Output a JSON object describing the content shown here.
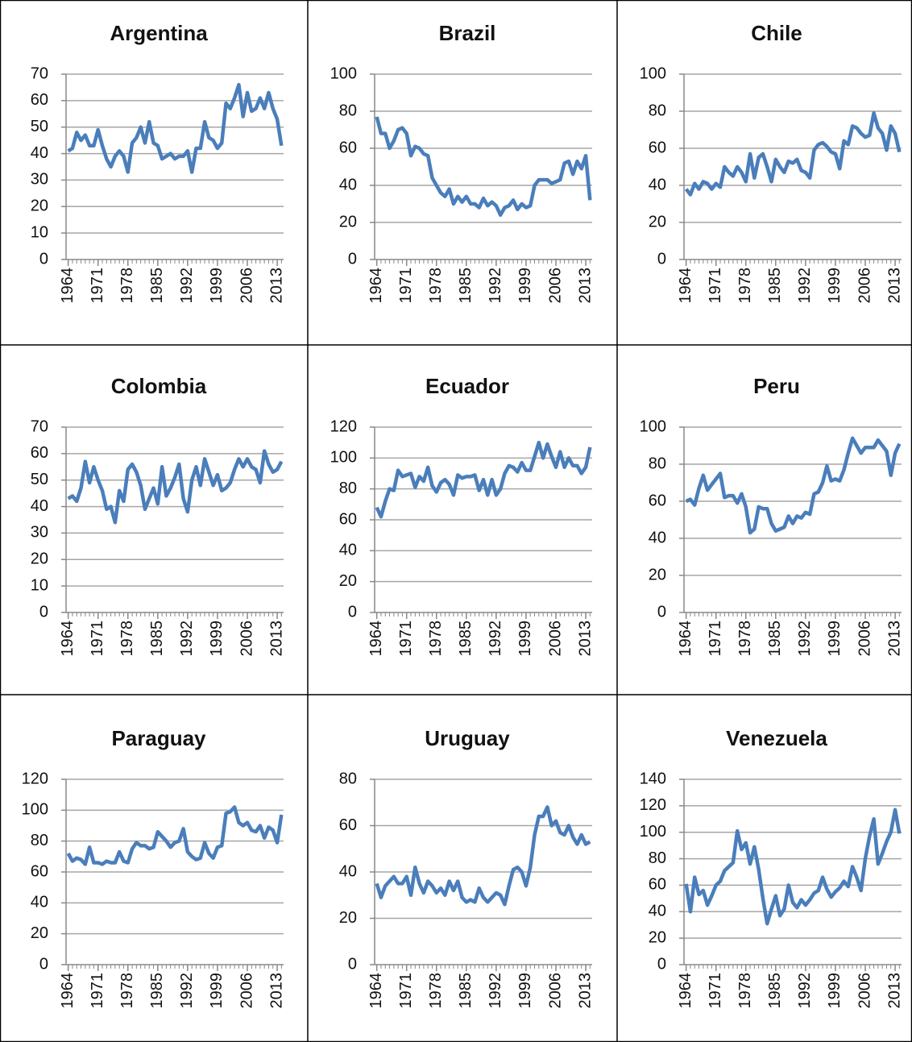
{
  "chart_data": [
    {
      "type": "line",
      "title": "Argentina",
      "color": "#4a7ebb",
      "x": [
        1964,
        1965,
        1966,
        1967,
        1968,
        1969,
        1970,
        1971,
        1972,
        1973,
        1974,
        1975,
        1976,
        1977,
        1978,
        1979,
        1980,
        1981,
        1982,
        1983,
        1984,
        1985,
        1986,
        1987,
        1988,
        1989,
        1990,
        1991,
        1992,
        1993,
        1994,
        1995,
        1996,
        1997,
        1998,
        1999,
        2000,
        2001,
        2002,
        2003,
        2004,
        2005,
        2006,
        2007,
        2008,
        2009,
        2010,
        2011,
        2012,
        2013,
        2014
      ],
      "values": [
        41,
        42,
        48,
        45,
        47,
        43,
        43,
        49,
        43,
        38,
        35,
        39,
        41,
        39,
        33,
        44,
        46,
        50,
        44,
        52,
        44,
        43,
        38,
        39,
        40,
        38,
        39,
        39,
        41,
        33,
        42,
        42,
        52,
        46,
        45,
        42,
        44,
        59,
        57,
        61,
        66,
        54,
        63,
        56,
        57,
        61,
        57,
        63,
        57,
        53,
        43
      ],
      "xlim": [
        1963.5,
        2014.5
      ],
      "xticks": [
        1964,
        1971,
        1978,
        1985,
        1992,
        1999,
        2006,
        2013
      ],
      "ylim": [
        0,
        70
      ],
      "yticks": [
        0,
        10,
        20,
        30,
        40,
        50,
        60,
        70
      ],
      "grid": true
    },
    {
      "type": "line",
      "title": "Brazil",
      "color": "#4a7ebb",
      "x": [
        1964,
        1965,
        1966,
        1967,
        1968,
        1969,
        1970,
        1971,
        1972,
        1973,
        1974,
        1975,
        1976,
        1977,
        1978,
        1979,
        1980,
        1981,
        1982,
        1983,
        1984,
        1985,
        1986,
        1987,
        1988,
        1989,
        1990,
        1991,
        1992,
        1993,
        1994,
        1995,
        1996,
        1997,
        1998,
        1999,
        2000,
        2001,
        2002,
        2003,
        2004,
        2005,
        2006,
        2007,
        2008,
        2009,
        2010,
        2011,
        2012,
        2013,
        2014
      ],
      "values": [
        77,
        68,
        68,
        60,
        64,
        70,
        71,
        68,
        56,
        61,
        60,
        57,
        56,
        44,
        40,
        36,
        34,
        38,
        30,
        34,
        31,
        34,
        30,
        30,
        28,
        33,
        29,
        31,
        29,
        24,
        28,
        29,
        32,
        27,
        30,
        28,
        29,
        40,
        43,
        43,
        43,
        41,
        42,
        43,
        52,
        53,
        46,
        53,
        49,
        56,
        32
      ],
      "xlim": [
        1963.5,
        2014.5
      ],
      "xticks": [
        1964,
        1971,
        1978,
        1985,
        1992,
        1999,
        2006,
        2013
      ],
      "ylim": [
        0,
        100
      ],
      "yticks": [
        0,
        20,
        40,
        60,
        80,
        100
      ],
      "grid": true
    },
    {
      "type": "line",
      "title": "Chile",
      "color": "#4a7ebb",
      "x": [
        1964,
        1965,
        1966,
        1967,
        1968,
        1969,
        1970,
        1971,
        1972,
        1973,
        1974,
        1975,
        1976,
        1977,
        1978,
        1979,
        1980,
        1981,
        1982,
        1983,
        1984,
        1985,
        1986,
        1987,
        1988,
        1989,
        1990,
        1991,
        1992,
        1993,
        1994,
        1995,
        1996,
        1997,
        1998,
        1999,
        2000,
        2001,
        2002,
        2003,
        2004,
        2005,
        2006,
        2007,
        2008,
        2009,
        2010,
        2011,
        2012,
        2013,
        2014
      ],
      "values": [
        38,
        35,
        41,
        38,
        42,
        41,
        38,
        41,
        39,
        50,
        47,
        45,
        50,
        47,
        42,
        57,
        44,
        55,
        57,
        50,
        42,
        54,
        50,
        47,
        53,
        52,
        54,
        48,
        47,
        44,
        59,
        62,
        63,
        61,
        58,
        57,
        49,
        64,
        62,
        72,
        71,
        68,
        66,
        67,
        79,
        71,
        68,
        59,
        72,
        68,
        58
      ],
      "xlim": [
        1963.5,
        2014.5
      ],
      "xticks": [
        1964,
        1971,
        1978,
        1985,
        1992,
        1999,
        2006,
        2013
      ],
      "ylim": [
        0,
        100
      ],
      "yticks": [
        0,
        20,
        40,
        60,
        80,
        100
      ],
      "grid": true
    },
    {
      "type": "line",
      "title": "Colombia",
      "color": "#4a7ebb",
      "x": [
        1964,
        1965,
        1966,
        1967,
        1968,
        1969,
        1970,
        1971,
        1972,
        1973,
        1974,
        1975,
        1976,
        1977,
        1978,
        1979,
        1980,
        1981,
        1982,
        1983,
        1984,
        1985,
        1986,
        1987,
        1988,
        1989,
        1990,
        1991,
        1992,
        1993,
        1994,
        1995,
        1996,
        1997,
        1998,
        1999,
        2000,
        2001,
        2002,
        2003,
        2004,
        2005,
        2006,
        2007,
        2008,
        2009,
        2010,
        2011,
        2012,
        2013,
        2014
      ],
      "values": [
        43,
        44,
        42,
        47,
        57,
        49,
        55,
        50,
        46,
        39,
        40,
        34,
        46,
        42,
        54,
        56,
        53,
        48,
        39,
        43,
        47,
        41,
        55,
        44,
        47,
        51,
        56,
        43,
        38,
        50,
        55,
        48,
        58,
        53,
        48,
        52,
        46,
        47,
        49,
        54,
        58,
        55,
        58,
        55,
        54,
        49,
        61,
        56,
        53,
        54,
        57
      ],
      "xlim": [
        1963.5,
        2014.5
      ],
      "xticks": [
        1964,
        1971,
        1978,
        1985,
        1992,
        1999,
        2006,
        2013
      ],
      "ylim": [
        0,
        70
      ],
      "yticks": [
        0,
        10,
        20,
        30,
        40,
        50,
        60,
        70
      ],
      "grid": true
    },
    {
      "type": "line",
      "title": "Ecuador",
      "color": "#4a7ebb",
      "x": [
        1964,
        1965,
        1966,
        1967,
        1968,
        1969,
        1970,
        1971,
        1972,
        1973,
        1974,
        1975,
        1976,
        1977,
        1978,
        1979,
        1980,
        1981,
        1982,
        1983,
        1984,
        1985,
        1986,
        1987,
        1988,
        1989,
        1990,
        1991,
        1992,
        1993,
        1994,
        1995,
        1996,
        1997,
        1998,
        1999,
        2000,
        2001,
        2002,
        2003,
        2004,
        2005,
        2006,
        2007,
        2008,
        2009,
        2010,
        2011,
        2012,
        2013,
        2014
      ],
      "values": [
        68,
        62,
        72,
        80,
        79,
        92,
        88,
        89,
        90,
        81,
        88,
        85,
        94,
        82,
        78,
        84,
        86,
        83,
        76,
        89,
        87,
        88,
        88,
        89,
        79,
        86,
        76,
        86,
        76,
        80,
        90,
        95,
        94,
        91,
        97,
        92,
        92,
        101,
        110,
        100,
        109,
        101,
        94,
        104,
        94,
        100,
        95,
        95,
        90,
        94,
        107
      ],
      "xlim": [
        1963.5,
        2014.5
      ],
      "xticks": [
        1964,
        1971,
        1978,
        1985,
        1992,
        1999,
        2006,
        2013
      ],
      "ylim": [
        0,
        120
      ],
      "yticks": [
        0,
        20,
        40,
        60,
        80,
        100,
        120
      ],
      "grid": true
    },
    {
      "type": "line",
      "title": "Peru",
      "color": "#4a7ebb",
      "x": [
        1964,
        1965,
        1966,
        1967,
        1968,
        1969,
        1970,
        1971,
        1972,
        1973,
        1974,
        1975,
        1976,
        1977,
        1978,
        1979,
        1980,
        1981,
        1982,
        1983,
        1984,
        1985,
        1986,
        1987,
        1988,
        1989,
        1990,
        1991,
        1992,
        1993,
        1994,
        1995,
        1996,
        1997,
        1998,
        1999,
        2000,
        2001,
        2002,
        2003,
        2004,
        2005,
        2006,
        2007,
        2008,
        2009,
        2010,
        2011,
        2012,
        2013,
        2014
      ],
      "values": [
        60,
        61,
        58,
        67,
        74,
        66,
        69,
        72,
        75,
        62,
        63,
        63,
        59,
        64,
        57,
        43,
        45,
        57,
        56,
        56,
        48,
        44,
        45,
        46,
        52,
        48,
        52,
        51,
        54,
        53,
        64,
        65,
        70,
        79,
        71,
        72,
        71,
        77,
        86,
        94,
        90,
        86,
        89,
        89,
        89,
        93,
        90,
        87,
        74,
        86,
        91
      ],
      "xlim": [
        1963.5,
        2014.5
      ],
      "xticks": [
        1964,
        1971,
        1978,
        1985,
        1992,
        1999,
        2006,
        2013
      ],
      "ylim": [
        0,
        100
      ],
      "yticks": [
        0,
        20,
        40,
        60,
        80,
        100
      ],
      "grid": true
    },
    {
      "type": "line",
      "title": "Paraguay",
      "color": "#4a7ebb",
      "x": [
        1964,
        1965,
        1966,
        1967,
        1968,
        1969,
        1970,
        1971,
        1972,
        1973,
        1974,
        1975,
        1976,
        1977,
        1978,
        1979,
        1980,
        1981,
        1982,
        1983,
        1984,
        1985,
        1986,
        1987,
        1988,
        1989,
        1990,
        1991,
        1992,
        1993,
        1994,
        1995,
        1996,
        1997,
        1998,
        1999,
        2000,
        2001,
        2002,
        2003,
        2004,
        2005,
        2006,
        2007,
        2008,
        2009,
        2010,
        2011,
        2012,
        2013,
        2014
      ],
      "values": [
        72,
        67,
        69,
        68,
        65,
        76,
        66,
        66,
        65,
        67,
        66,
        66,
        73,
        67,
        66,
        75,
        79,
        77,
        77,
        75,
        76,
        86,
        83,
        80,
        76,
        79,
        80,
        88,
        73,
        70,
        68,
        69,
        79,
        72,
        69,
        76,
        77,
        98,
        99,
        102,
        92,
        90,
        92,
        87,
        86,
        90,
        82,
        89,
        87,
        79,
        97
      ],
      "xlim": [
        1963.5,
        2014.5
      ],
      "xticks": [
        1964,
        1971,
        1978,
        1985,
        1992,
        1999,
        2006,
        2013
      ],
      "ylim": [
        0,
        120
      ],
      "yticks": [
        0,
        20,
        40,
        60,
        80,
        100,
        120
      ],
      "grid": true
    },
    {
      "type": "line",
      "title": "Uruguay",
      "color": "#4a7ebb",
      "x": [
        1964,
        1965,
        1966,
        1967,
        1968,
        1969,
        1970,
        1971,
        1972,
        1973,
        1974,
        1975,
        1976,
        1977,
        1978,
        1979,
        1980,
        1981,
        1982,
        1983,
        1984,
        1985,
        1986,
        1987,
        1988,
        1989,
        1990,
        1991,
        1992,
        1993,
        1994,
        1995,
        1996,
        1997,
        1998,
        1999,
        2000,
        2001,
        2002,
        2003,
        2004,
        2005,
        2006,
        2007,
        2008,
        2009,
        2010,
        2011,
        2012,
        2013,
        2014
      ],
      "values": [
        35,
        29,
        34,
        36,
        38,
        35,
        35,
        38,
        30,
        42,
        35,
        31,
        36,
        34,
        31,
        33,
        30,
        36,
        32,
        36,
        29,
        27,
        28,
        27,
        33,
        29,
        27,
        29,
        31,
        30,
        26,
        34,
        41,
        42,
        40,
        34,
        42,
        56,
        64,
        64,
        68,
        60,
        62,
        57,
        56,
        60,
        55,
        52,
        56,
        52,
        53
      ],
      "xlim": [
        1963.5,
        2014.5
      ],
      "xticks": [
        1964,
        1971,
        1978,
        1985,
        1992,
        1999,
        2006,
        2013
      ],
      "ylim": [
        0,
        80
      ],
      "yticks": [
        0,
        20,
        40,
        60,
        80
      ],
      "grid": true
    },
    {
      "type": "line",
      "title": "Venezuela",
      "color": "#4a7ebb",
      "x": [
        1964,
        1965,
        1966,
        1967,
        1968,
        1969,
        1970,
        1971,
        1972,
        1973,
        1974,
        1975,
        1976,
        1977,
        1978,
        1979,
        1980,
        1981,
        1982,
        1983,
        1984,
        1985,
        1986,
        1987,
        1988,
        1989,
        1990,
        1991,
        1992,
        1993,
        1994,
        1995,
        1996,
        1997,
        1998,
        1999,
        2000,
        2001,
        2002,
        2003,
        2004,
        2005,
        2006,
        2007,
        2008,
        2009,
        2010,
        2011,
        2012,
        2013,
        2014
      ],
      "values": [
        61,
        40,
        66,
        53,
        56,
        45,
        52,
        60,
        63,
        71,
        74,
        77,
        101,
        87,
        92,
        76,
        89,
        72,
        50,
        31,
        42,
        52,
        37,
        42,
        60,
        47,
        43,
        49,
        45,
        49,
        54,
        56,
        66,
        57,
        51,
        55,
        58,
        63,
        59,
        74,
        66,
        56,
        80,
        97,
        110,
        76,
        84,
        93,
        100,
        117,
        99
      ],
      "xlim": [
        1963.5,
        2014.5
      ],
      "xticks": [
        1964,
        1971,
        1978,
        1985,
        1992,
        1999,
        2006,
        2013
      ],
      "ylim": [
        0,
        140
      ],
      "yticks": [
        0,
        20,
        40,
        60,
        80,
        100,
        120,
        140
      ],
      "grid": true
    }
  ]
}
